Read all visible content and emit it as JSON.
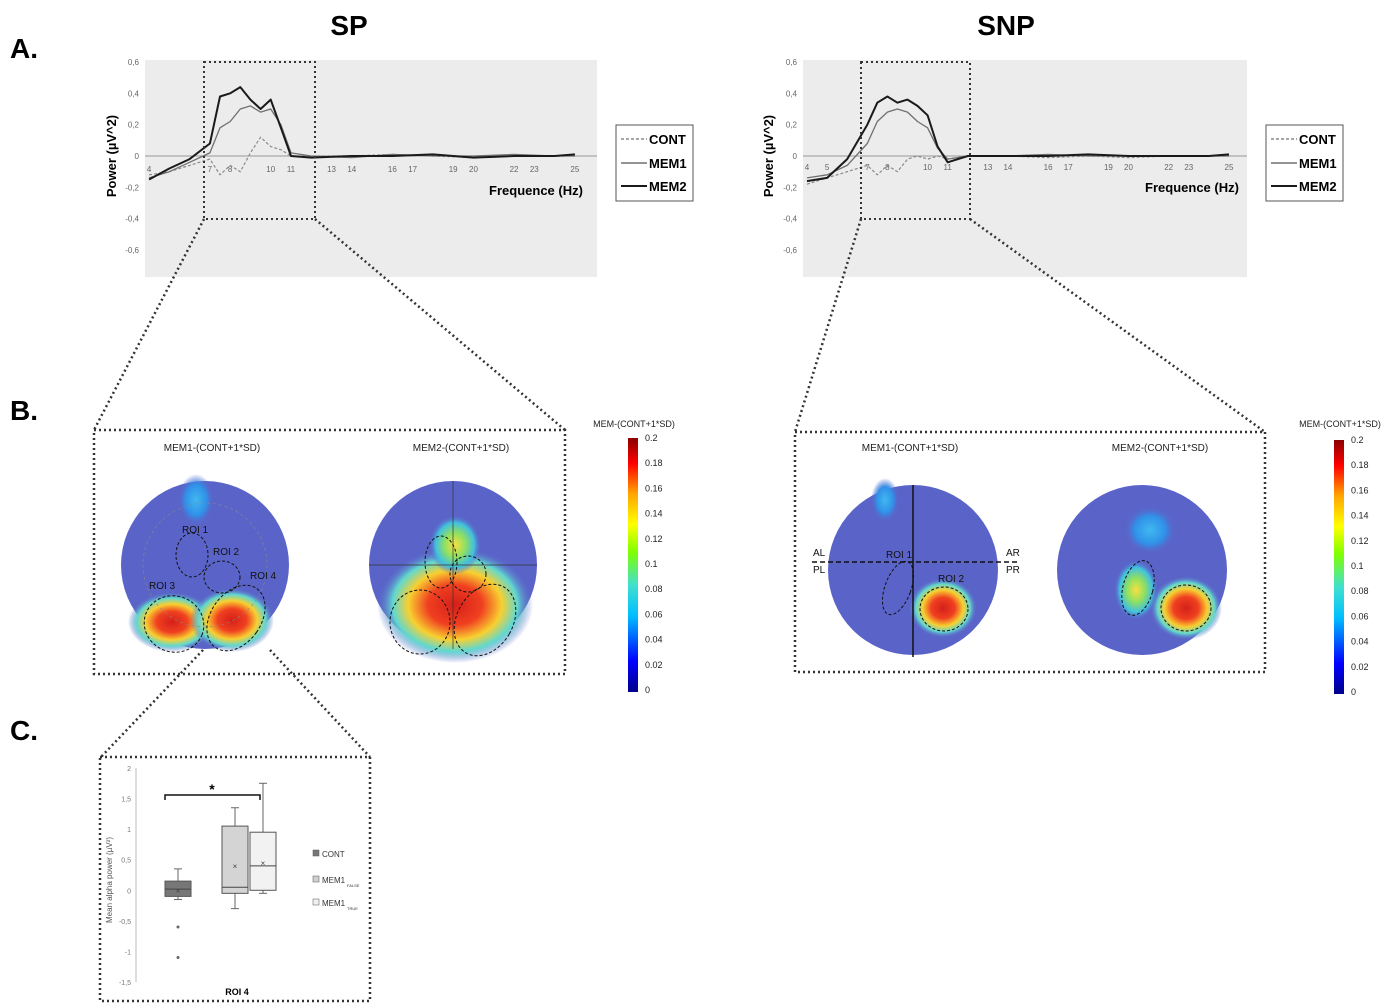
{
  "panel_labels": {
    "a": "A.",
    "b": "B.",
    "c": "C."
  },
  "columns": {
    "sp": "SP",
    "snp": "SNP"
  },
  "colors": {
    "plot_bg": "#ececec",
    "cont": "#8a8a8a",
    "mem1": "#707070",
    "mem2": "#1a1a1a",
    "head": "#5a64c8",
    "colorbar": [
      "#00008b",
      "#0000ff",
      "#00bfff",
      "#40e0d0",
      "#7fff00",
      "#ffff00",
      "#ffa500",
      "#ff0000",
      "#8b0000"
    ]
  },
  "chart_data": [
    {
      "id": "sp-spectrum",
      "type": "line",
      "xlabel": "Frequence (Hz)",
      "ylabel": "Power (µV^2)",
      "ylim": [
        -0.6,
        0.6
      ],
      "yticks": [
        "0,6",
        "0,4",
        "0,2",
        "0",
        "-0,2",
        "-0,4",
        "-0,6"
      ],
      "xticks": [
        "4",
        "7",
        "8",
        "10",
        "11",
        "13",
        "14",
        "16",
        "17",
        "19",
        "20",
        "22",
        "23",
        "25"
      ],
      "legend": [
        "CONT",
        "MEM1",
        "MEM2"
      ],
      "series": [
        {
          "name": "CONT",
          "style": "dashed",
          "points": [
            [
              4,
              -0.12
            ],
            [
              5,
              -0.1
            ],
            [
              6,
              -0.06
            ],
            [
              7,
              -0.02
            ],
            [
              7.5,
              -0.12
            ],
            [
              8,
              -0.06
            ],
            [
              8.5,
              -0.1
            ],
            [
              9,
              0.02
            ],
            [
              9.5,
              0.12
            ],
            [
              10,
              0.06
            ],
            [
              10.5,
              0.04
            ],
            [
              11,
              0.0
            ],
            [
              12,
              0.0
            ],
            [
              14,
              0.0
            ],
            [
              16,
              0.01
            ],
            [
              18,
              0.0
            ],
            [
              20,
              -0.01
            ],
            [
              22,
              0.0
            ],
            [
              24,
              0.0
            ],
            [
              25,
              0.0
            ]
          ]
        },
        {
          "name": "MEM1",
          "style": "solid",
          "points": [
            [
              4,
              -0.14
            ],
            [
              5,
              -0.1
            ],
            [
              6,
              -0.04
            ],
            [
              7,
              0.02
            ],
            [
              7.5,
              0.18
            ],
            [
              8,
              0.22
            ],
            [
              8.5,
              0.3
            ],
            [
              9,
              0.32
            ],
            [
              9.5,
              0.28
            ],
            [
              10,
              0.3
            ],
            [
              10.5,
              0.2
            ],
            [
              11,
              0.02
            ],
            [
              12,
              0.0
            ],
            [
              14,
              -0.01
            ],
            [
              16,
              0.01
            ],
            [
              18,
              0.0
            ],
            [
              20,
              0.0
            ],
            [
              22,
              0.01
            ],
            [
              24,
              0.0
            ],
            [
              25,
              0.0
            ]
          ]
        },
        {
          "name": "MEM2",
          "style": "solid",
          "points": [
            [
              4,
              -0.15
            ],
            [
              5,
              -0.08
            ],
            [
              6,
              -0.02
            ],
            [
              7,
              0.08
            ],
            [
              7.5,
              0.38
            ],
            [
              8,
              0.4
            ],
            [
              8.5,
              0.44
            ],
            [
              9,
              0.36
            ],
            [
              9.5,
              0.3
            ],
            [
              10,
              0.36
            ],
            [
              10.5,
              0.18
            ],
            [
              11,
              0.0
            ],
            [
              12,
              -0.01
            ],
            [
              14,
              0.0
            ],
            [
              16,
              0.0
            ],
            [
              18,
              0.01
            ],
            [
              20,
              -0.01
            ],
            [
              22,
              0.0
            ],
            [
              24,
              0.0
            ],
            [
              25,
              0.01
            ]
          ]
        }
      ]
    },
    {
      "id": "snp-spectrum",
      "type": "line",
      "xlabel": "Frequence (Hz)",
      "ylabel": "Power (µV^2)",
      "ylim": [
        -0.6,
        0.6
      ],
      "yticks": [
        "0,6",
        "0,4",
        "0,2",
        "0",
        "-0,2",
        "-0,4",
        "-0,6"
      ],
      "xticks": [
        "4",
        "5",
        "7",
        "8",
        "10",
        "11",
        "13",
        "14",
        "16",
        "17",
        "19",
        "20",
        "22",
        "23",
        "25"
      ],
      "legend": [
        "CONT",
        "MEM1",
        "MEM2"
      ],
      "series": [
        {
          "name": "CONT",
          "style": "dashed",
          "points": [
            [
              4,
              -0.18
            ],
            [
              5,
              -0.14
            ],
            [
              6,
              -0.1
            ],
            [
              7,
              -0.06
            ],
            [
              7.5,
              -0.12
            ],
            [
              8,
              -0.06
            ],
            [
              8.5,
              -0.1
            ],
            [
              9,
              -0.02
            ],
            [
              9.5,
              0.0
            ],
            [
              10,
              -0.02
            ],
            [
              10.5,
              0.0
            ],
            [
              11,
              -0.02
            ],
            [
              12,
              0.0
            ],
            [
              14,
              0.0
            ],
            [
              16,
              -0.01
            ],
            [
              18,
              0.0
            ],
            [
              20,
              -0.01
            ],
            [
              22,
              0.0
            ],
            [
              24,
              0.0
            ],
            [
              25,
              0.0
            ]
          ]
        },
        {
          "name": "MEM1",
          "style": "solid",
          "points": [
            [
              4,
              -0.14
            ],
            [
              5,
              -0.12
            ],
            [
              6,
              -0.06
            ],
            [
              7,
              0.08
            ],
            [
              7.5,
              0.22
            ],
            [
              8,
              0.28
            ],
            [
              8.5,
              0.3
            ],
            [
              9,
              0.28
            ],
            [
              9.5,
              0.22
            ],
            [
              10,
              0.18
            ],
            [
              10.5,
              0.05
            ],
            [
              11,
              -0.02
            ],
            [
              12,
              0.0
            ],
            [
              14,
              0.0
            ],
            [
              16,
              0.01
            ],
            [
              18,
              0.0
            ],
            [
              20,
              0.0
            ],
            [
              22,
              0.0
            ],
            [
              24,
              0.0
            ],
            [
              25,
              0.0
            ]
          ]
        },
        {
          "name": "MEM2",
          "style": "solid",
          "points": [
            [
              4,
              -0.16
            ],
            [
              5,
              -0.14
            ],
            [
              6,
              -0.02
            ],
            [
              7,
              0.2
            ],
            [
              7.5,
              0.34
            ],
            [
              8,
              0.38
            ],
            [
              8.5,
              0.34
            ],
            [
              9,
              0.36
            ],
            [
              9.5,
              0.32
            ],
            [
              10,
              0.26
            ],
            [
              10.5,
              0.06
            ],
            [
              11,
              -0.04
            ],
            [
              12,
              0.0
            ],
            [
              14,
              0.0
            ],
            [
              16,
              0.0
            ],
            [
              18,
              0.01
            ],
            [
              20,
              0.0
            ],
            [
              22,
              0.0
            ],
            [
              24,
              0.0
            ],
            [
              25,
              0.01
            ]
          ]
        }
      ]
    },
    {
      "id": "colorbar",
      "type": "heatmap",
      "title": "MEM-(CONT+1*SD)",
      "ticks": [
        "0.2",
        "0.18",
        "0.16",
        "0.14",
        "0.12",
        "0.1",
        "0.08",
        "0.06",
        "0.04",
        "0.02",
        "0"
      ],
      "range": [
        0,
        0.2
      ]
    },
    {
      "id": "roi4-boxplot",
      "type": "box",
      "title": "ROI 4",
      "ylabel": "Mean alpha power (µV²)",
      "ylim": [
        -1.5,
        2
      ],
      "yticks": [
        "2",
        "1,5",
        "1",
        "0,5",
        "0",
        "-0,5",
        "-1",
        "-1,5"
      ],
      "significance": "*",
      "legend": [
        "CONT",
        "MEM1",
        "MEM1"
      ],
      "legend_subscripts": [
        "",
        "FALSE",
        "TRUE"
      ],
      "boxes": [
        {
          "name": "CONT",
          "min": -0.15,
          "q1": -0.1,
          "median": 0.02,
          "q3": 0.15,
          "max": 0.35,
          "mean": 0.0,
          "outliers": [
            -0.6,
            -1.1
          ]
        },
        {
          "name": "MEM1 FALSE",
          "min": -0.3,
          "q1": -0.05,
          "median": 0.05,
          "q3": 1.05,
          "max": 1.35,
          "mean": 0.4,
          "outliers": []
        },
        {
          "name": "MEM1 TRUE",
          "min": -0.05,
          "q1": 0.0,
          "median": 0.4,
          "q3": 0.95,
          "max": 1.75,
          "mean": 0.45,
          "outliers": []
        }
      ]
    }
  ],
  "topomaps": {
    "sp": {
      "left_title": "MEM1-(CONT+1*SD)",
      "right_title": "MEM2-(CONT+1*SD)",
      "roi_labels": [
        "ROI 1",
        "ROI 2",
        "ROI 3",
        "ROI 4"
      ]
    },
    "snp": {
      "left_title": "MEM1-(CONT+1*SD)",
      "right_title": "MEM2-(CONT+1*SD)",
      "roi_labels": [
        "ROI 1",
        "ROI 2"
      ],
      "quadrants": [
        "AL",
        "PL",
        "AR",
        "PR"
      ]
    }
  }
}
